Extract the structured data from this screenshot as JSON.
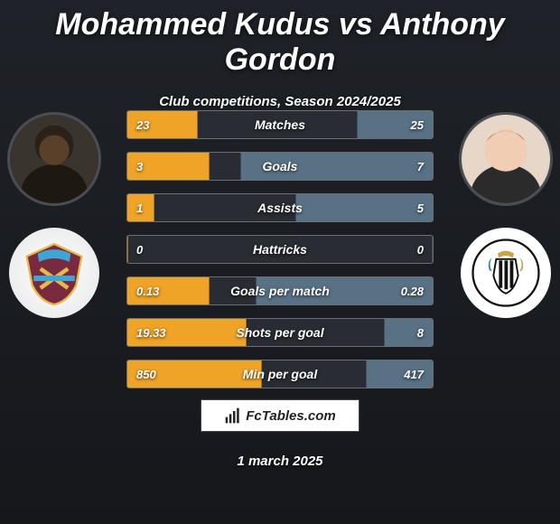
{
  "title": "Mohammed Kudus vs Anthony Gordon",
  "subtitle": "Club competitions, Season 2024/2025",
  "date": "1 march 2025",
  "brand": "FcTables.com",
  "colors": {
    "bar_left": "#f0a427",
    "bar_right": "#587184",
    "row_bg": "#292c32",
    "row_border": "#6b6e74",
    "badge_left_primary": "#7a2a3f",
    "badge_left_secondary": "#3da6d4",
    "badge_right_bg": "#ffffff",
    "badge_right_stripe": "#111111"
  },
  "players": {
    "left": {
      "name": "Mohammed Kudus",
      "club": "West Ham United"
    },
    "right": {
      "name": "Anthony Gordon",
      "club": "Newcastle United"
    }
  },
  "stats": [
    {
      "label": "Matches",
      "left_val": "23",
      "right_val": "25",
      "left_pct": 23,
      "right_pct": 25
    },
    {
      "label": "Goals",
      "left_val": "3",
      "right_val": "7",
      "left_pct": 27,
      "right_pct": 63
    },
    {
      "label": "Assists",
      "left_val": "1",
      "right_val": "5",
      "left_pct": 9,
      "right_pct": 45
    },
    {
      "label": "Hattricks",
      "left_val": "0",
      "right_val": "0",
      "left_pct": 0,
      "right_pct": 0
    },
    {
      "label": "Goals per match",
      "left_val": "0.13",
      "right_val": "0.28",
      "left_pct": 27,
      "right_pct": 58
    },
    {
      "label": "Shots per goal",
      "left_val": "19.33",
      "right_val": "8",
      "left_pct": 39,
      "right_pct": 16
    },
    {
      "label": "Min per goal",
      "left_val": "850",
      "right_val": "417",
      "left_pct": 44,
      "right_pct": 22
    }
  ]
}
